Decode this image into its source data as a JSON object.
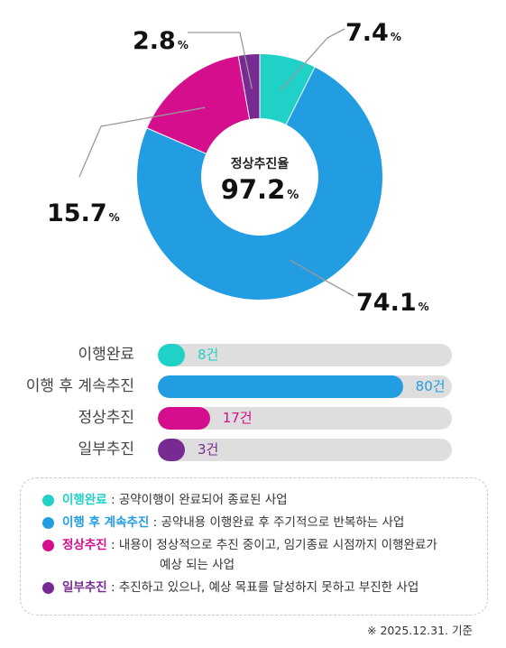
{
  "chart_data": [
    {
      "type": "pie",
      "center_label": "정상추진율",
      "center_value": "97.2",
      "center_unit": "%",
      "slices": [
        {
          "name": "이행완료",
          "value": 7.4,
          "color": "#1fd1c6"
        },
        {
          "name": "이행 후 계속추진",
          "value": 74.1,
          "color": "#229de2"
        },
        {
          "name": "정상추진",
          "value": 15.7,
          "color": "#d40e8c"
        },
        {
          "name": "일부추진",
          "value": 2.8,
          "color": "#772a91"
        }
      ]
    },
    {
      "type": "bar",
      "categories": [
        "이행완료",
        "이행 후 계속추진",
        "정상추진",
        "일부추진"
      ],
      "values": [
        8,
        80,
        17,
        3
      ],
      "value_labels": [
        "8건",
        "80건",
        "17건",
        "3건"
      ],
      "colors": [
        "#1fd1c6",
        "#229de2",
        "#d40e8c",
        "#772a91"
      ],
      "xlim": [
        0,
        96
      ]
    }
  ],
  "legend": [
    {
      "term": "이행완료",
      "sep": " : ",
      "desc": "공약이행이 완료되어 종료된 사업",
      "cont": "",
      "color": "#1fd1c6"
    },
    {
      "term": "이행 후 계속추진",
      "sep": " : ",
      "desc": "공약내용 이행완료 후 주기적으로 반복하는 사업",
      "cont": "",
      "color": "#229de2"
    },
    {
      "term": "정상추진",
      "sep": " : ",
      "desc": "내용이 정상적으로 추진 중이고, 임기종료 시점까지 이행완료가",
      "cont": "예상 되는 사업",
      "color": "#d40e8c"
    },
    {
      "term": "일부추진",
      "sep": " : ",
      "desc": "추진하고 있으나, 예상 목표를 달성하지 못하고 부진한 사업",
      "cont": "",
      "color": "#772a91"
    }
  ],
  "note": "※ 2025.12.31. 기준"
}
